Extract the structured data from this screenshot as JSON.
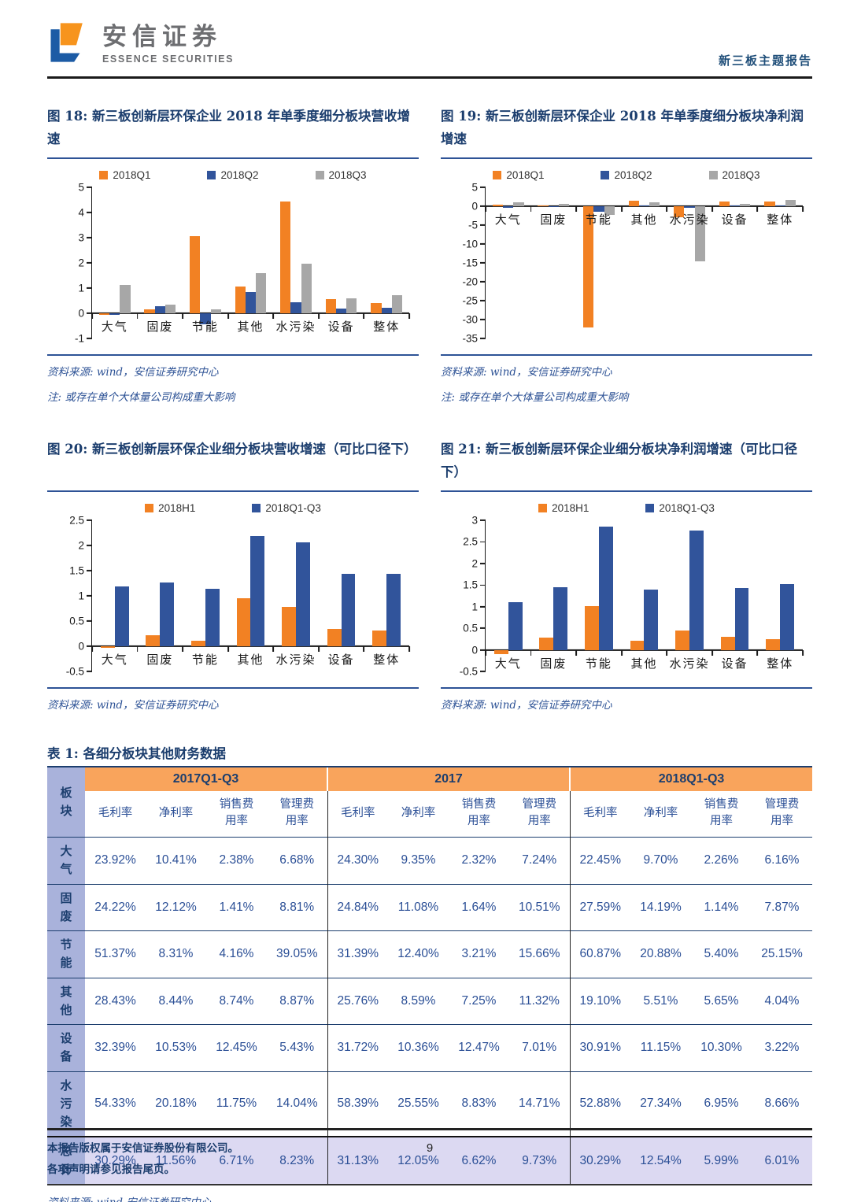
{
  "header": {
    "brand_cn": "安信证券",
    "brand_en": "ESSENCE SECURITIES",
    "report_tag": "新三板主题报告"
  },
  "figure18": {
    "title": "图 18: 新三板创新层环保企业 2018 年单季度细分板块营收增速",
    "source": "资料来源: wind，安信证券研究中心",
    "note": "注: 或存在单个大体量公司构成重大影响"
  },
  "figure19": {
    "title": "图 19: 新三板创新层环保企业 2018 年单季度细分板块净利润增速",
    "source": "资料来源: wind，安信证券研究中心",
    "note": "注: 或存在单个大体量公司构成重大影响"
  },
  "figure20": {
    "title": "图 20: 新三板创新层环保企业细分板块营收增速（可比口径下）",
    "source": "资料来源: wind，安信证券研究中心"
  },
  "figure21": {
    "title": "图 21: 新三板创新层环保企业细分板块净利润增速（可比口径下）",
    "source": "资料来源: wind，安信证券研究中心"
  },
  "chart_data": [
    {
      "type": "bar",
      "title": "新三板创新层环保企业2018年单季度细分板块营收增速",
      "categories": [
        "大气",
        "固废",
        "节能",
        "其他",
        "水污染",
        "设备",
        "整体"
      ],
      "series": [
        {
          "name": "2018Q1",
          "color": "#F28123",
          "values": [
            -0.05,
            0.15,
            3.05,
            1.05,
            4.45,
            0.55,
            0.4
          ]
        },
        {
          "name": "2018Q2",
          "color": "#31549B",
          "values": [
            -0.05,
            0.27,
            -0.45,
            0.85,
            0.45,
            0.18,
            0.22
          ]
        },
        {
          "name": "2018Q3",
          "color": "#A7A7A7",
          "values": [
            1.13,
            0.35,
            0.15,
            1.6,
            1.97,
            0.6,
            0.72
          ]
        }
      ],
      "ylim": [
        -1,
        5
      ],
      "yticks": [
        -1,
        0,
        1,
        2,
        3,
        4,
        5
      ],
      "grid": false,
      "legend_position": "top"
    },
    {
      "type": "bar",
      "title": "新三板创新层环保企业2018年单季度细分板块净利润增速",
      "categories": [
        "大气",
        "固废",
        "节能",
        "其他",
        "水污染",
        "设备",
        "整体"
      ],
      "series": [
        {
          "name": "2018Q1",
          "color": "#F28123",
          "values": [
            0.5,
            0.2,
            -32.0,
            1.5,
            -3.0,
            1.2,
            1.2
          ]
        },
        {
          "name": "2018Q2",
          "color": "#31549B",
          "values": [
            -0.5,
            0.1,
            -1.5,
            0.2,
            -0.4,
            0.2,
            0.3
          ]
        },
        {
          "name": "2018Q3",
          "color": "#A7A7A7",
          "values": [
            1.0,
            0.7,
            -2.3,
            1.0,
            -14.5,
            0.7,
            1.7
          ]
        }
      ],
      "ylim": [
        -35,
        5
      ],
      "yticks": [
        -35,
        -30,
        -25,
        -20,
        -15,
        -10,
        -5,
        0,
        5
      ],
      "grid": false,
      "legend_position": "top"
    },
    {
      "type": "bar",
      "title": "新三板创新层环保企业细分板块营收增速（可比口径下）",
      "categories": [
        "大气",
        "固废",
        "节能",
        "其他",
        "水污染",
        "设备",
        "整体"
      ],
      "series": [
        {
          "name": "2018H1",
          "color": "#F28123",
          "values": [
            -0.03,
            0.22,
            0.11,
            0.95,
            0.78,
            0.34,
            0.31
          ]
        },
        {
          "name": "2018Q1-Q3",
          "color": "#31549B",
          "values": [
            1.18,
            1.26,
            1.14,
            2.18,
            2.06,
            1.44,
            1.43
          ]
        }
      ],
      "ylim": [
        -0.5,
        2.5
      ],
      "yticks": [
        -0.5,
        0,
        0.5,
        1,
        1.5,
        2,
        2.5
      ],
      "grid": false,
      "legend_position": "top"
    },
    {
      "type": "bar",
      "title": "新三板创新层环保企业细分板块净利润增速（可比口径下）",
      "categories": [
        "大气",
        "固废",
        "节能",
        "其他",
        "水污染",
        "设备",
        "整体"
      ],
      "series": [
        {
          "name": "2018H1",
          "color": "#F28123",
          "values": [
            -0.1,
            0.28,
            1.01,
            0.22,
            0.45,
            0.3,
            0.25
          ]
        },
        {
          "name": "2018Q1-Q3",
          "color": "#31549B",
          "values": [
            1.1,
            1.45,
            2.85,
            1.4,
            2.77,
            1.43,
            1.53
          ]
        }
      ],
      "ylim": [
        -0.5,
        3
      ],
      "yticks": [
        -0.5,
        0,
        0.5,
        1,
        1.5,
        2,
        2.5,
        3
      ],
      "grid": false,
      "legend_position": "top"
    }
  ],
  "table": {
    "title": "表 1: 各细分板块其他财务数据",
    "corner": "板块",
    "groups": [
      "2017Q1-Q3",
      "2017",
      "2018Q1-Q3"
    ],
    "subcols": [
      "毛利率",
      "净利率",
      "销售费用率",
      "管理费用率"
    ],
    "rows": [
      {
        "label": "大气",
        "values": [
          "23.92%",
          "10.41%",
          "2.38%",
          "6.68%",
          "24.30%",
          "9.35%",
          "2.32%",
          "7.24%",
          "22.45%",
          "9.70%",
          "2.26%",
          "6.16%"
        ]
      },
      {
        "label": "固废",
        "values": [
          "24.22%",
          "12.12%",
          "1.41%",
          "8.81%",
          "24.84%",
          "11.08%",
          "1.64%",
          "10.51%",
          "27.59%",
          "14.19%",
          "1.14%",
          "7.87%"
        ]
      },
      {
        "label": "节能",
        "values": [
          "51.37%",
          "8.31%",
          "4.16%",
          "39.05%",
          "31.39%",
          "12.40%",
          "3.21%",
          "15.66%",
          "60.87%",
          "20.88%",
          "5.40%",
          "25.15%"
        ]
      },
      {
        "label": "其他",
        "values": [
          "28.43%",
          "8.44%",
          "8.74%",
          "8.87%",
          "25.76%",
          "8.59%",
          "7.25%",
          "11.32%",
          "19.10%",
          "5.51%",
          "5.65%",
          "4.04%"
        ]
      },
      {
        "label": "设备",
        "values": [
          "32.39%",
          "10.53%",
          "12.45%",
          "5.43%",
          "31.72%",
          "10.36%",
          "12.47%",
          "7.01%",
          "30.91%",
          "11.15%",
          "10.30%",
          "3.22%"
        ]
      },
      {
        "label": "水污染",
        "values": [
          "54.33%",
          "20.18%",
          "11.75%",
          "14.04%",
          "58.39%",
          "25.55%",
          "8.83%",
          "14.71%",
          "52.88%",
          "27.34%",
          "6.95%",
          "8.66%"
        ]
      },
      {
        "label": "总计",
        "total": true,
        "values": [
          "30.29%",
          "11.56%",
          "6.71%",
          "8.23%",
          "31.13%",
          "12.05%",
          "6.62%",
          "9.73%",
          "30.29%",
          "12.54%",
          "5.99%",
          "6.01%"
        ]
      }
    ],
    "source": "资料来源: wind,安信证券研究中心"
  },
  "footer": {
    "line1": "本报告版权属于安信证券股份有限公司。",
    "line2": "各项声明请参见报告尾页。",
    "page": "9"
  }
}
